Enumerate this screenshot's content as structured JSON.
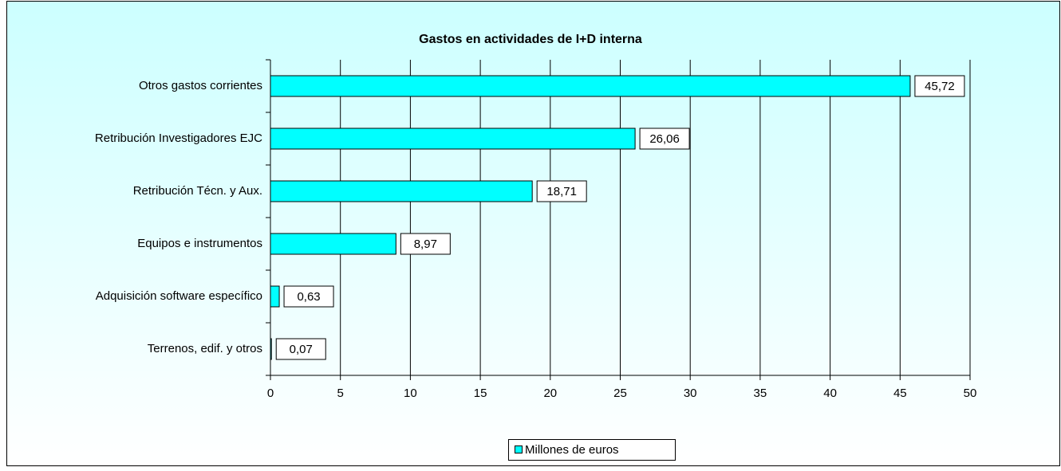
{
  "chart_data": {
    "type": "bar",
    "orientation": "horizontal",
    "title": "Gastos en actividades de I+D interna",
    "categories": [
      "Otros gastos corrientes",
      "Retribución Investigadores EJC",
      "Retribución Técn. y Aux.",
      "Equipos e instrumentos",
      "Adquisición software específico",
      "Terrenos, edif. y otros"
    ],
    "series": [
      {
        "name": "Millones de euros",
        "color": "#00ffff",
        "values": [
          45.72,
          26.06,
          18.71,
          8.97,
          0.63,
          0.07
        ],
        "value_labels": [
          "45,72",
          "26,06",
          "18,71",
          "8,97",
          "0,63",
          "0,07"
        ]
      }
    ],
    "xlim": [
      0,
      50
    ],
    "xticks": [
      0,
      5,
      10,
      15,
      20,
      25,
      30,
      35,
      40,
      45,
      50
    ],
    "grid": true,
    "legend": "bottom"
  }
}
